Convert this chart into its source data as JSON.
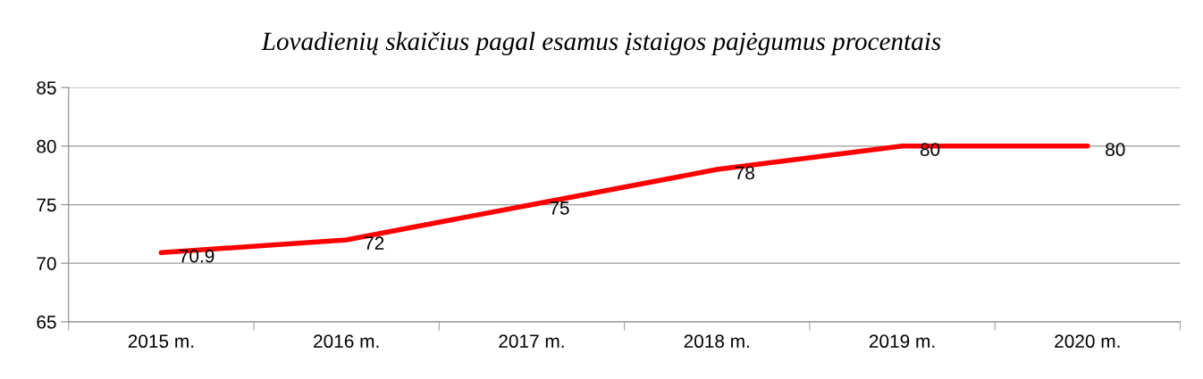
{
  "chart_data": {
    "type": "line",
    "title": "Lovadienių skaičius pagal esamus įstaigos pajėgumus procentais",
    "categories": [
      "2015 m.",
      "2016 m.",
      "2017 m.",
      "2018 m.",
      "2019 m.",
      "2020 m."
    ],
    "series": [
      {
        "color": "#ff0000",
        "values": [
          70.9,
          72,
          75,
          78,
          80,
          80
        ]
      }
    ],
    "ylim": [
      65,
      85
    ],
    "yticks": [
      65,
      70,
      75,
      80,
      85
    ],
    "grid": "y",
    "data_labels": true,
    "marker": "none",
    "line_style": "solid",
    "legend": false
  }
}
